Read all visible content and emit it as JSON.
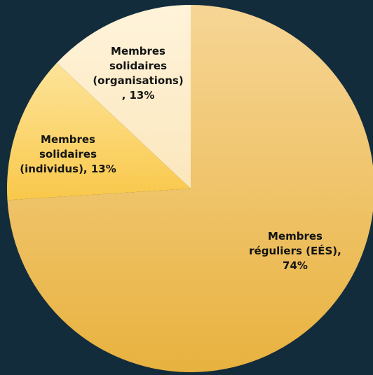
{
  "chart_data": {
    "type": "pie",
    "title": "",
    "start": "12 o'clock, clockwise",
    "slices": [
      {
        "label_lines": [
          "Membres",
          "réguliers (EÉS),",
          "74%"
        ],
        "label": "Membres réguliers (EÉS)",
        "value": 74,
        "color_light": "#f6d595",
        "color_dark": "#e8b23f"
      },
      {
        "label_lines": [
          "Membres",
          "solidaires",
          "(individus), 13%"
        ],
        "label": "Membres solidaires (individus)",
        "value": 13,
        "color_light": "#fde49a",
        "color_dark": "#f9c84a"
      },
      {
        "label_lines": [
          "Membres",
          "solidaires",
          "(organisations)",
          ", 13%"
        ],
        "label": "Membres solidaires (organisations)",
        "value": 13,
        "color_light": "#fff3da",
        "color_dark": "#fbe7bd"
      }
    ],
    "background": "#132c3c"
  }
}
